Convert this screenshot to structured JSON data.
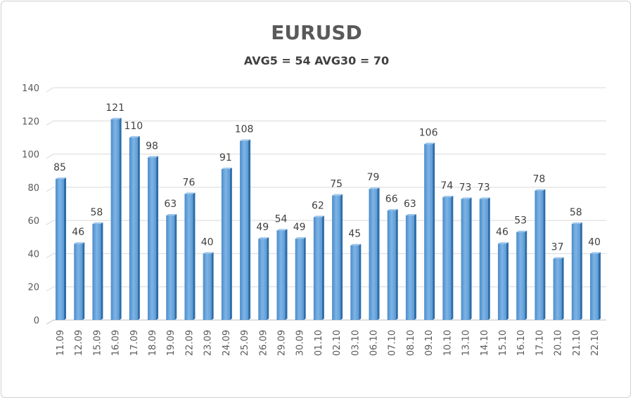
{
  "chart_data": {
    "type": "bar",
    "title": "EURUSD",
    "subtitle": "AVG5 = 54 AVG30 = 70",
    "xlabel": "",
    "ylabel": "",
    "ylim": [
      0,
      140
    ],
    "yticks": [
      0,
      20,
      40,
      60,
      80,
      100,
      120,
      140
    ],
    "grid": true,
    "legend": "none",
    "bar_color": "#5b9bd5",
    "categories": [
      "11.09",
      "12.09",
      "15.09",
      "16.09",
      "17.09",
      "18.09",
      "19.09",
      "22.09",
      "23.09",
      "24.09",
      "25.09",
      "26.09",
      "29.09",
      "30.09",
      "01.10",
      "02.10",
      "03.10",
      "06.10",
      "07.10",
      "08.10",
      "09.10",
      "10.10",
      "13.10",
      "14.10",
      "15.10",
      "16.10",
      "17.10",
      "20.10",
      "21.10",
      "22.10"
    ],
    "values": [
      85,
      46,
      58,
      121,
      110,
      98,
      63,
      76,
      40,
      91,
      108,
      49,
      54,
      49,
      62,
      75,
      45,
      79,
      66,
      63,
      106,
      74,
      73,
      73,
      46,
      53,
      78,
      37,
      58,
      40
    ]
  }
}
